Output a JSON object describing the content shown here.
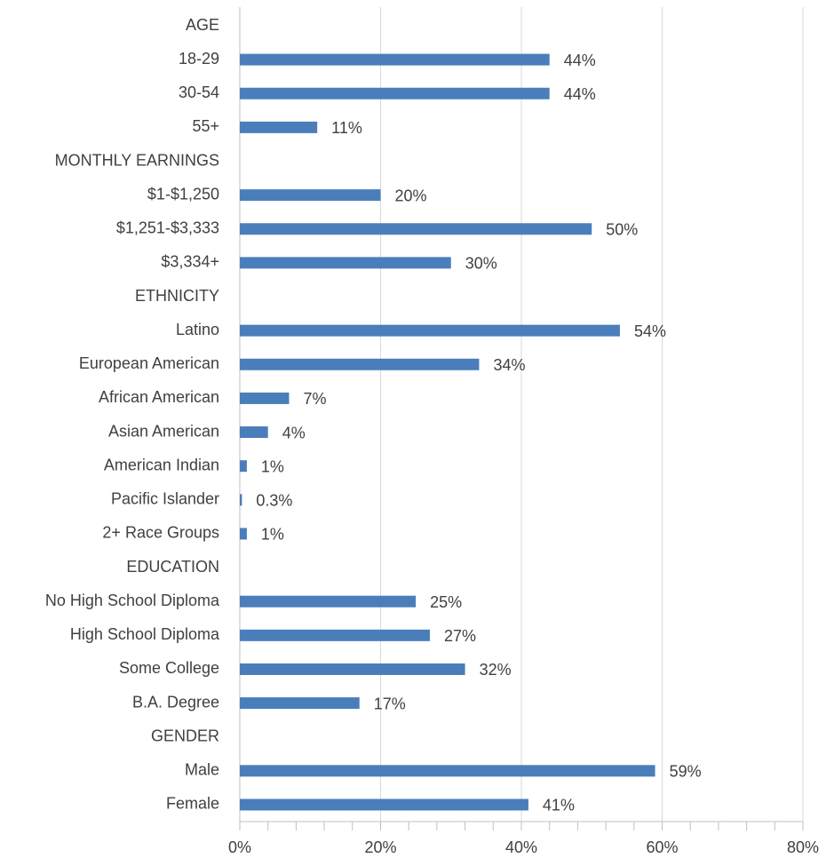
{
  "chart_data": {
    "type": "hbar",
    "categories": [
      "AGE",
      "18-29",
      "30-54",
      "55+",
      "MONTHLY EARNINGS",
      "$1-$1,250",
      "$1,251-$3,333",
      "$3,334+",
      "ETHNICITY",
      "Latino",
      "European American",
      "African American",
      "Asian American",
      "American Indian",
      "Pacific Islander",
      "2+ Race Groups",
      "EDUCATION",
      "No High School Diploma",
      "High School Diploma",
      "Some College",
      "B.A. Degree",
      "GENDER",
      "Male",
      "Female"
    ],
    "values": [
      null,
      44,
      44,
      11,
      null,
      20,
      50,
      30,
      null,
      54,
      34,
      7,
      4,
      1,
      0.3,
      1,
      null,
      25,
      27,
      32,
      17,
      null,
      59,
      41
    ],
    "value_labels": [
      null,
      "44%",
      "44%",
      "11%",
      null,
      "20%",
      "50%",
      "30%",
      null,
      "54%",
      "34%",
      "7%",
      "4%",
      "1%",
      "0.3%",
      "1%",
      null,
      "25%",
      "27%",
      "32%",
      "17%",
      null,
      "59%",
      "41%"
    ],
    "color": "#4a7ebb",
    "xlim": [
      0,
      80
    ],
    "xticks": [
      {
        "value": 0,
        "label": "0%"
      },
      {
        "value": 20,
        "label": "20%"
      },
      {
        "value": 40,
        "label": "40%"
      },
      {
        "value": 60,
        "label": "60%"
      },
      {
        "value": 80,
        "label": "80%"
      }
    ],
    "xminorticks": [
      4,
      8,
      12,
      16,
      24,
      28,
      32,
      36,
      44,
      48,
      52,
      56,
      64,
      68,
      72,
      76
    ],
    "grid": true
  }
}
